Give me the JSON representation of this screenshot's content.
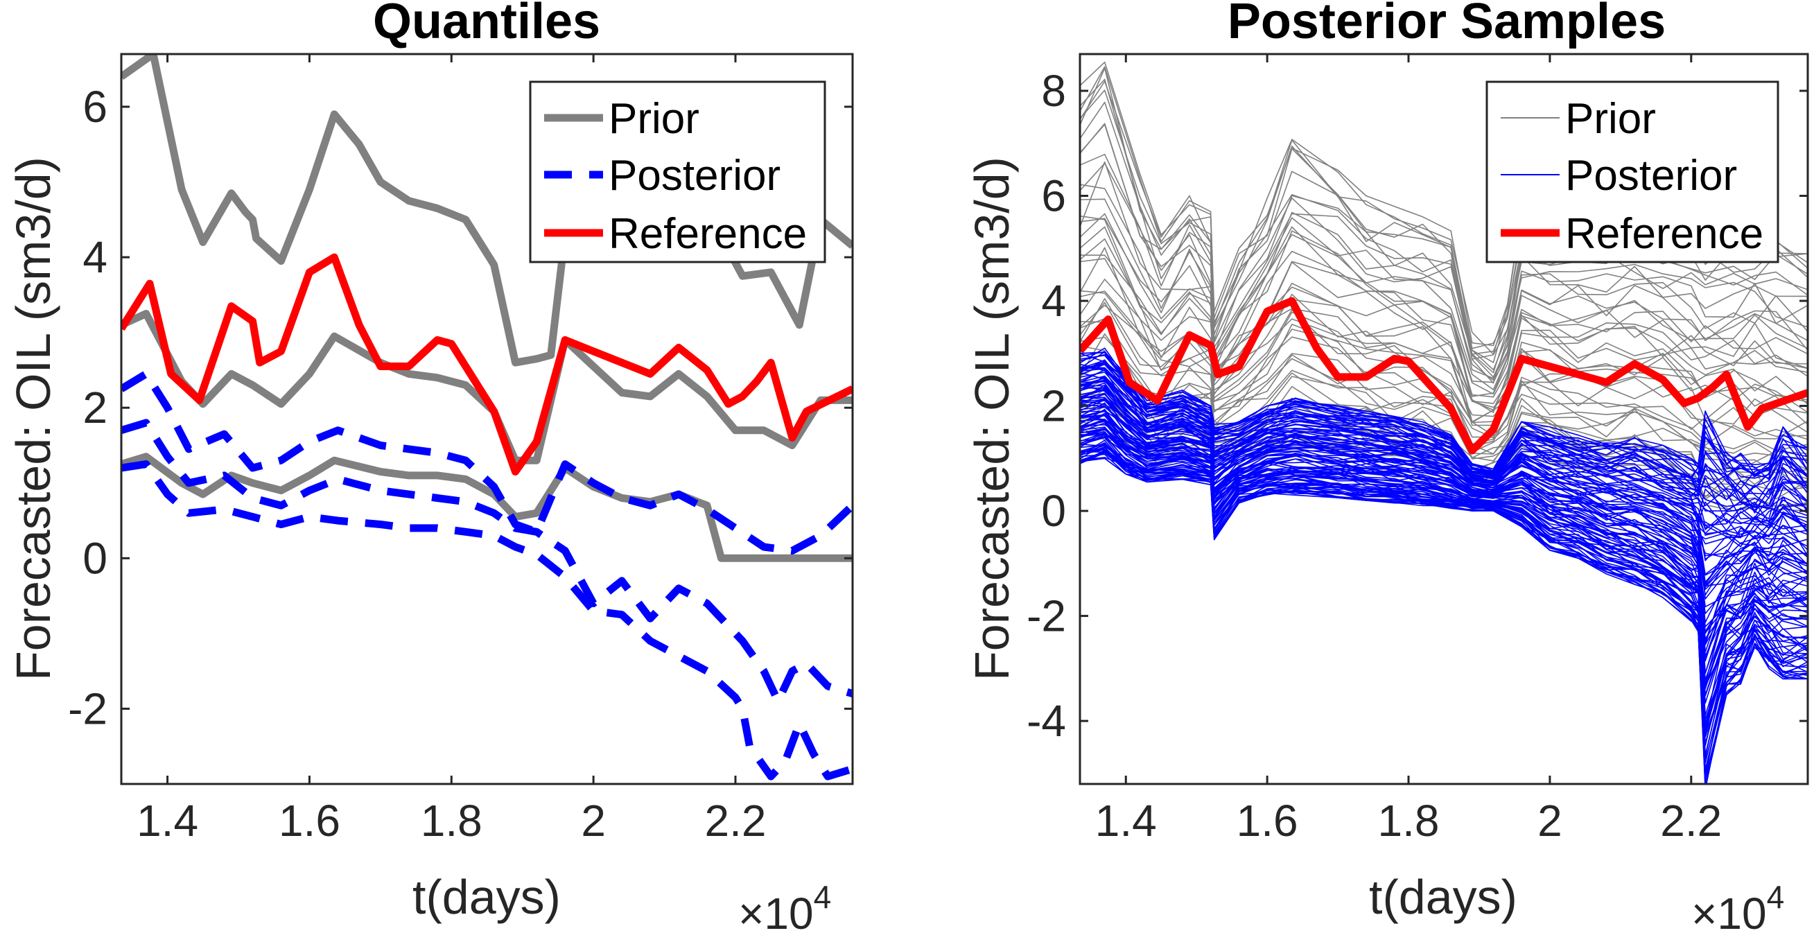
{
  "chart_data": [
    {
      "type": "line",
      "title": "Quantiles",
      "xlabel": "t(days)",
      "ylabel": "Forecasted: OIL (sm3/d)",
      "x_exponent_label": "×10",
      "x_exponent_power": "4",
      "xlim": [
        1.335,
        2.365
      ],
      "ylim": [
        -3,
        6.7
      ],
      "xticks": [
        1.4,
        1.6,
        1.8,
        2,
        2.2
      ],
      "xtick_labels": [
        "1.4",
        "1.6",
        "1.8",
        "2",
        "2.2"
      ],
      "yticks": [
        -2,
        0,
        2,
        4,
        6
      ],
      "ytick_labels": [
        "-2",
        "0",
        "2",
        "4",
        "6"
      ],
      "grid": false,
      "legend_position": "top-right",
      "legend": [
        "Prior",
        "Posterior",
        "Reference"
      ],
      "series": [
        {
          "name": "Prior",
          "role": "upper quantile",
          "color": "#808080",
          "style": "solid",
          "x": [
            1.335,
            1.365,
            1.38,
            1.42,
            1.45,
            1.49,
            1.51,
            1.52,
            1.525,
            1.56,
            1.6,
            1.635,
            1.67,
            1.7,
            1.74,
            1.78,
            1.82,
            1.86,
            1.89,
            1.92,
            1.94,
            1.96,
            1.98,
            2.02,
            2.07,
            2.11,
            2.16,
            2.19,
            2.21,
            2.25,
            2.29,
            2.32,
            2.365
          ],
          "y": [
            6.4,
            6.6,
            6.7,
            4.9,
            4.2,
            4.85,
            4.6,
            4.5,
            4.25,
            3.95,
            4.9,
            5.9,
            5.5,
            5.0,
            4.75,
            4.65,
            4.5,
            3.9,
            2.6,
            2.65,
            2.7,
            4.3,
            4.2,
            4.2,
            4.2,
            4.2,
            4.15,
            4.1,
            3.75,
            3.8,
            3.1,
            4.5,
            4.15
          ]
        },
        {
          "name": "Prior",
          "role": "median",
          "color": "#808080",
          "style": "solid",
          "x": [
            1.335,
            1.37,
            1.42,
            1.45,
            1.49,
            1.52,
            1.56,
            1.6,
            1.635,
            1.7,
            1.74,
            1.78,
            1.82,
            1.86,
            1.89,
            1.92,
            1.96,
            2.0,
            2.04,
            2.08,
            2.12,
            2.16,
            2.2,
            2.24,
            2.28,
            2.32,
            2.365
          ],
          "y": [
            3.1,
            3.25,
            2.35,
            2.05,
            2.45,
            2.3,
            2.05,
            2.45,
            2.95,
            2.6,
            2.45,
            2.4,
            2.3,
            1.95,
            1.3,
            1.3,
            2.9,
            2.55,
            2.2,
            2.15,
            2.45,
            2.15,
            1.7,
            1.7,
            1.5,
            2.1,
            2.1
          ]
        },
        {
          "name": "Prior",
          "role": "lower quantile",
          "color": "#808080",
          "style": "solid",
          "x": [
            1.335,
            1.37,
            1.42,
            1.45,
            1.49,
            1.52,
            1.56,
            1.6,
            1.635,
            1.7,
            1.74,
            1.78,
            1.82,
            1.86,
            1.89,
            1.92,
            1.96,
            2.0,
            2.04,
            2.08,
            2.12,
            2.16,
            2.18,
            2.22,
            2.26,
            2.3,
            2.365
          ],
          "y": [
            1.25,
            1.35,
            1.0,
            0.85,
            1.1,
            1.0,
            0.9,
            1.1,
            1.3,
            1.15,
            1.1,
            1.1,
            1.05,
            0.85,
            0.55,
            0.6,
            1.2,
            0.95,
            0.8,
            0.75,
            0.85,
            0.7,
            0.0,
            0.0,
            0.0,
            0.0,
            0.0
          ]
        },
        {
          "name": "Posterior",
          "role": "upper quantile",
          "color": "#0000ff",
          "style": "dashed",
          "x": [
            1.335,
            1.37,
            1.4,
            1.43,
            1.48,
            1.52,
            1.56,
            1.6,
            1.64,
            1.7,
            1.74,
            1.78,
            1.82,
            1.86,
            1.89,
            1.92,
            1.96,
            2.0,
            2.04,
            2.08,
            2.12,
            2.16,
            2.2,
            2.24,
            2.28,
            2.32,
            2.365
          ],
          "y": [
            2.25,
            2.45,
            2.0,
            1.45,
            1.65,
            1.2,
            1.3,
            1.55,
            1.7,
            1.5,
            1.45,
            1.4,
            1.3,
            0.95,
            0.45,
            0.35,
            1.25,
            1.0,
            0.8,
            0.7,
            0.85,
            0.65,
            0.4,
            0.15,
            0.1,
            0.3,
            0.7
          ]
        },
        {
          "name": "Posterior",
          "role": "median",
          "color": "#0000ff",
          "style": "dashed",
          "x": [
            1.335,
            1.37,
            1.4,
            1.43,
            1.48,
            1.52,
            1.56,
            1.6,
            1.64,
            1.7,
            1.74,
            1.78,
            1.82,
            1.86,
            1.89,
            1.92,
            1.96,
            2.0,
            2.04,
            2.08,
            2.12,
            2.16,
            2.2,
            2.21,
            2.24,
            2.26,
            2.28,
            2.3,
            2.33,
            2.365
          ],
          "y": [
            1.7,
            1.8,
            1.35,
            1.0,
            1.1,
            0.8,
            0.7,
            0.9,
            1.05,
            0.9,
            0.85,
            0.8,
            0.75,
            0.6,
            0.4,
            0.35,
            0.1,
            -0.6,
            -0.3,
            -0.8,
            -0.4,
            -0.6,
            -1.0,
            -1.1,
            -1.5,
            -1.9,
            -1.5,
            -1.4,
            -1.7,
            -1.8
          ]
        },
        {
          "name": "Posterior",
          "role": "lower quantile",
          "color": "#0000ff",
          "style": "dashed",
          "x": [
            1.335,
            1.37,
            1.4,
            1.43,
            1.48,
            1.52,
            1.56,
            1.6,
            1.64,
            1.7,
            1.74,
            1.78,
            1.82,
            1.86,
            1.89,
            1.92,
            1.96,
            2.0,
            2.04,
            2.08,
            2.12,
            2.16,
            2.2,
            2.21,
            2.22,
            2.25,
            2.27,
            2.29,
            2.31,
            2.33,
            2.365
          ],
          "y": [
            1.2,
            1.25,
            0.85,
            0.6,
            0.65,
            0.55,
            0.45,
            0.55,
            0.5,
            0.45,
            0.4,
            0.4,
            0.35,
            0.3,
            0.15,
            0.05,
            -0.25,
            -0.7,
            -0.75,
            -1.1,
            -1.3,
            -1.5,
            -1.85,
            -2.0,
            -2.5,
            -2.9,
            -2.7,
            -2.2,
            -2.6,
            -2.9,
            -2.8
          ]
        },
        {
          "name": "Reference",
          "color": "#ff0000",
          "style": "solid",
          "x": [
            1.335,
            1.375,
            1.405,
            1.445,
            1.49,
            1.52,
            1.53,
            1.56,
            1.6,
            1.635,
            1.67,
            1.7,
            1.74,
            1.78,
            1.8,
            1.86,
            1.89,
            1.92,
            1.96,
            2.0,
            2.04,
            2.08,
            2.12,
            2.16,
            2.19,
            2.21,
            2.23,
            2.25,
            2.28,
            2.3,
            2.365
          ],
          "y": [
            3.05,
            3.65,
            2.45,
            2.1,
            3.35,
            3.15,
            2.6,
            2.75,
            3.8,
            4.0,
            3.1,
            2.55,
            2.55,
            2.9,
            2.85,
            1.95,
            1.15,
            1.55,
            2.9,
            2.75,
            2.6,
            2.45,
            2.8,
            2.5,
            2.05,
            2.15,
            2.35,
            2.6,
            1.6,
            1.95,
            2.25
          ]
        }
      ]
    },
    {
      "type": "line",
      "title": "Posterior Samples",
      "xlabel": "t(days)",
      "ylabel": "Forecasted: OIL (sm3/d)",
      "x_exponent_label": "×10",
      "x_exponent_power": "4",
      "xlim": [
        1.335,
        2.365
      ],
      "ylim": [
        -5.2,
        8.7
      ],
      "xticks": [
        1.4,
        1.6,
        1.8,
        2,
        2.2
      ],
      "xtick_labels": [
        "1.4",
        "1.6",
        "1.8",
        "2",
        "2.2"
      ],
      "yticks": [
        -4,
        -2,
        0,
        2,
        4,
        6,
        8
      ],
      "ytick_labels": [
        "-4",
        "-2",
        "0",
        "2",
        "4",
        "6",
        "8"
      ],
      "grid": false,
      "legend_position": "top-right",
      "legend": [
        "Prior",
        "Posterior",
        "Reference"
      ],
      "series": [
        {
          "name": "Prior",
          "role": "ensemble of samples (thin gray lines)",
          "color": "#808080",
          "count": 45,
          "x": [
            1.335,
            1.37,
            1.42,
            1.45,
            1.49,
            1.52,
            1.525,
            1.56,
            1.6,
            1.635,
            1.7,
            1.74,
            1.78,
            1.82,
            1.86,
            1.89,
            1.92,
            1.94,
            1.96,
            2.0,
            2.04,
            2.08,
            2.12,
            2.16,
            2.2,
            2.22,
            2.26,
            2.29,
            2.32,
            2.365
          ],
          "envelope_low": [
            1.2,
            1.3,
            0.95,
            0.85,
            1.05,
            1.0,
            1.0,
            0.85,
            1.05,
            1.25,
            1.1,
            1.05,
            1.05,
            1.0,
            0.8,
            0.5,
            0.6,
            0.8,
            1.1,
            0.9,
            0.75,
            0.7,
            0.85,
            0.65,
            0.3,
            0.0,
            0.0,
            0.0,
            0.0,
            0.0
          ],
          "envelope_high": [
            8.1,
            8.7,
            6.5,
            5.5,
            6.3,
            5.7,
            3.8,
            5.0,
            6.0,
            7.3,
            6.5,
            6.0,
            5.8,
            5.6,
            5.5,
            3.4,
            3.2,
            4.0,
            5.7,
            5.6,
            5.5,
            5.5,
            5.5,
            5.4,
            5.4,
            5.2,
            5.3,
            5.5,
            5.3,
            4.9
          ]
        },
        {
          "name": "Posterior",
          "role": "ensemble of samples (thin blue lines)",
          "color": "#0000ff",
          "count": 110,
          "x": [
            1.335,
            1.37,
            1.4,
            1.43,
            1.48,
            1.52,
            1.525,
            1.56,
            1.6,
            1.64,
            1.7,
            1.74,
            1.78,
            1.82,
            1.86,
            1.89,
            1.92,
            1.96,
            2.0,
            2.04,
            2.08,
            2.12,
            2.16,
            2.2,
            2.21,
            2.22,
            2.25,
            2.27,
            2.29,
            2.31,
            2.33,
            2.365
          ],
          "envelope_low": [
            0.9,
            1.0,
            0.7,
            0.55,
            0.6,
            0.5,
            -0.55,
            0.15,
            0.3,
            0.3,
            0.25,
            0.2,
            0.15,
            0.1,
            0.05,
            0.0,
            0.0,
            -0.3,
            -0.75,
            -0.9,
            -1.2,
            -1.4,
            -1.65,
            -2.1,
            -2.3,
            -5.3,
            -3.5,
            -3.3,
            -2.6,
            -3.0,
            -3.3,
            -3.2
          ],
          "envelope_high": [
            3.0,
            3.1,
            2.6,
            2.1,
            2.3,
            2.0,
            1.65,
            1.7,
            2.0,
            2.15,
            2.0,
            1.9,
            1.8,
            1.7,
            1.45,
            0.9,
            0.8,
            1.7,
            1.6,
            1.45,
            1.35,
            1.4,
            1.25,
            1.0,
            0.9,
            1.9,
            1.2,
            1.1,
            0.9,
            1.0,
            1.6,
            1.2
          ]
        },
        {
          "name": "Reference",
          "color": "#ff0000",
          "x": [
            1.335,
            1.375,
            1.405,
            1.445,
            1.49,
            1.52,
            1.53,
            1.56,
            1.6,
            1.635,
            1.67,
            1.7,
            1.74,
            1.78,
            1.8,
            1.86,
            1.89,
            1.92,
            1.96,
            2.0,
            2.04,
            2.08,
            2.12,
            2.16,
            2.19,
            2.21,
            2.23,
            2.25,
            2.28,
            2.3,
            2.365
          ],
          "y": [
            3.05,
            3.65,
            2.45,
            2.1,
            3.35,
            3.15,
            2.6,
            2.75,
            3.8,
            4.0,
            3.1,
            2.55,
            2.55,
            2.9,
            2.85,
            1.95,
            1.15,
            1.55,
            2.9,
            2.75,
            2.6,
            2.45,
            2.8,
            2.5,
            2.05,
            2.15,
            2.35,
            2.6,
            1.6,
            1.95,
            2.25
          ]
        }
      ]
    }
  ]
}
